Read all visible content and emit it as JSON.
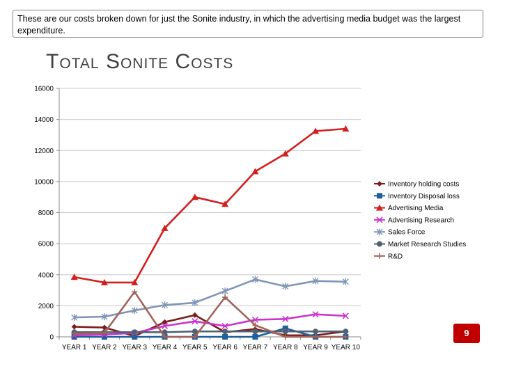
{
  "note": {
    "text": "These are our costs broken down for just the Sonite industry, in which the advertising media budget was the largest expenditure."
  },
  "slide": {
    "title": "Total Sonite Costs",
    "page_number": "9",
    "accent_color": "#c00000"
  },
  "chart_data": {
    "type": "line",
    "title": "",
    "xlabel": "",
    "ylabel": "",
    "ylim": [
      0,
      16000
    ],
    "yticks": [
      0,
      2000,
      4000,
      6000,
      8000,
      10000,
      12000,
      14000,
      16000
    ],
    "grid": true,
    "legend_position": "right",
    "categories": [
      "YEAR 1",
      "YEAR 2",
      "YEAR 3",
      "YEAR 4",
      "YEAR 5",
      "YEAR 6",
      "YEAR 7",
      "YEAR 8",
      "YEAR 9",
      "YEAR 10"
    ],
    "series": [
      {
        "name": "Inventory holding costs",
        "color": "#7b1c1c",
        "marker": "diamond",
        "values": [
          650,
          600,
          50,
          950,
          1400,
          300,
          500,
          100,
          100,
          350
        ]
      },
      {
        "name": "Inventory Disposal loss",
        "color": "#1f5f9e",
        "marker": "square",
        "values": [
          0,
          0,
          0,
          0,
          0,
          0,
          0,
          550,
          0,
          0
        ]
      },
      {
        "name": "Advertising Media",
        "color": "#d41f1f",
        "marker": "triangle",
        "values": [
          3850,
          3500,
          3500,
          7000,
          9000,
          8550,
          10650,
          11800,
          13250,
          13400
        ]
      },
      {
        "name": "Advertising Research",
        "color": "#cc33cc",
        "marker": "x",
        "values": [
          100,
          150,
          250,
          700,
          1000,
          700,
          1100,
          1150,
          1450,
          1350
        ]
      },
      {
        "name": "Sales Force",
        "color": "#8096b8",
        "marker": "star",
        "values": [
          1250,
          1300,
          1700,
          2050,
          2200,
          2950,
          3700,
          3250,
          3600,
          3550
        ]
      },
      {
        "name": "Market Research Studies",
        "color": "#4f6272",
        "marker": "circle",
        "values": [
          300,
          300,
          300,
          300,
          350,
          350,
          350,
          350,
          350,
          350
        ]
      },
      {
        "name": "R&D",
        "color": "#a0645a",
        "marker": "plus",
        "values": [
          200,
          250,
          2900,
          0,
          0,
          2550,
          750,
          0,
          0,
          0
        ]
      }
    ]
  }
}
